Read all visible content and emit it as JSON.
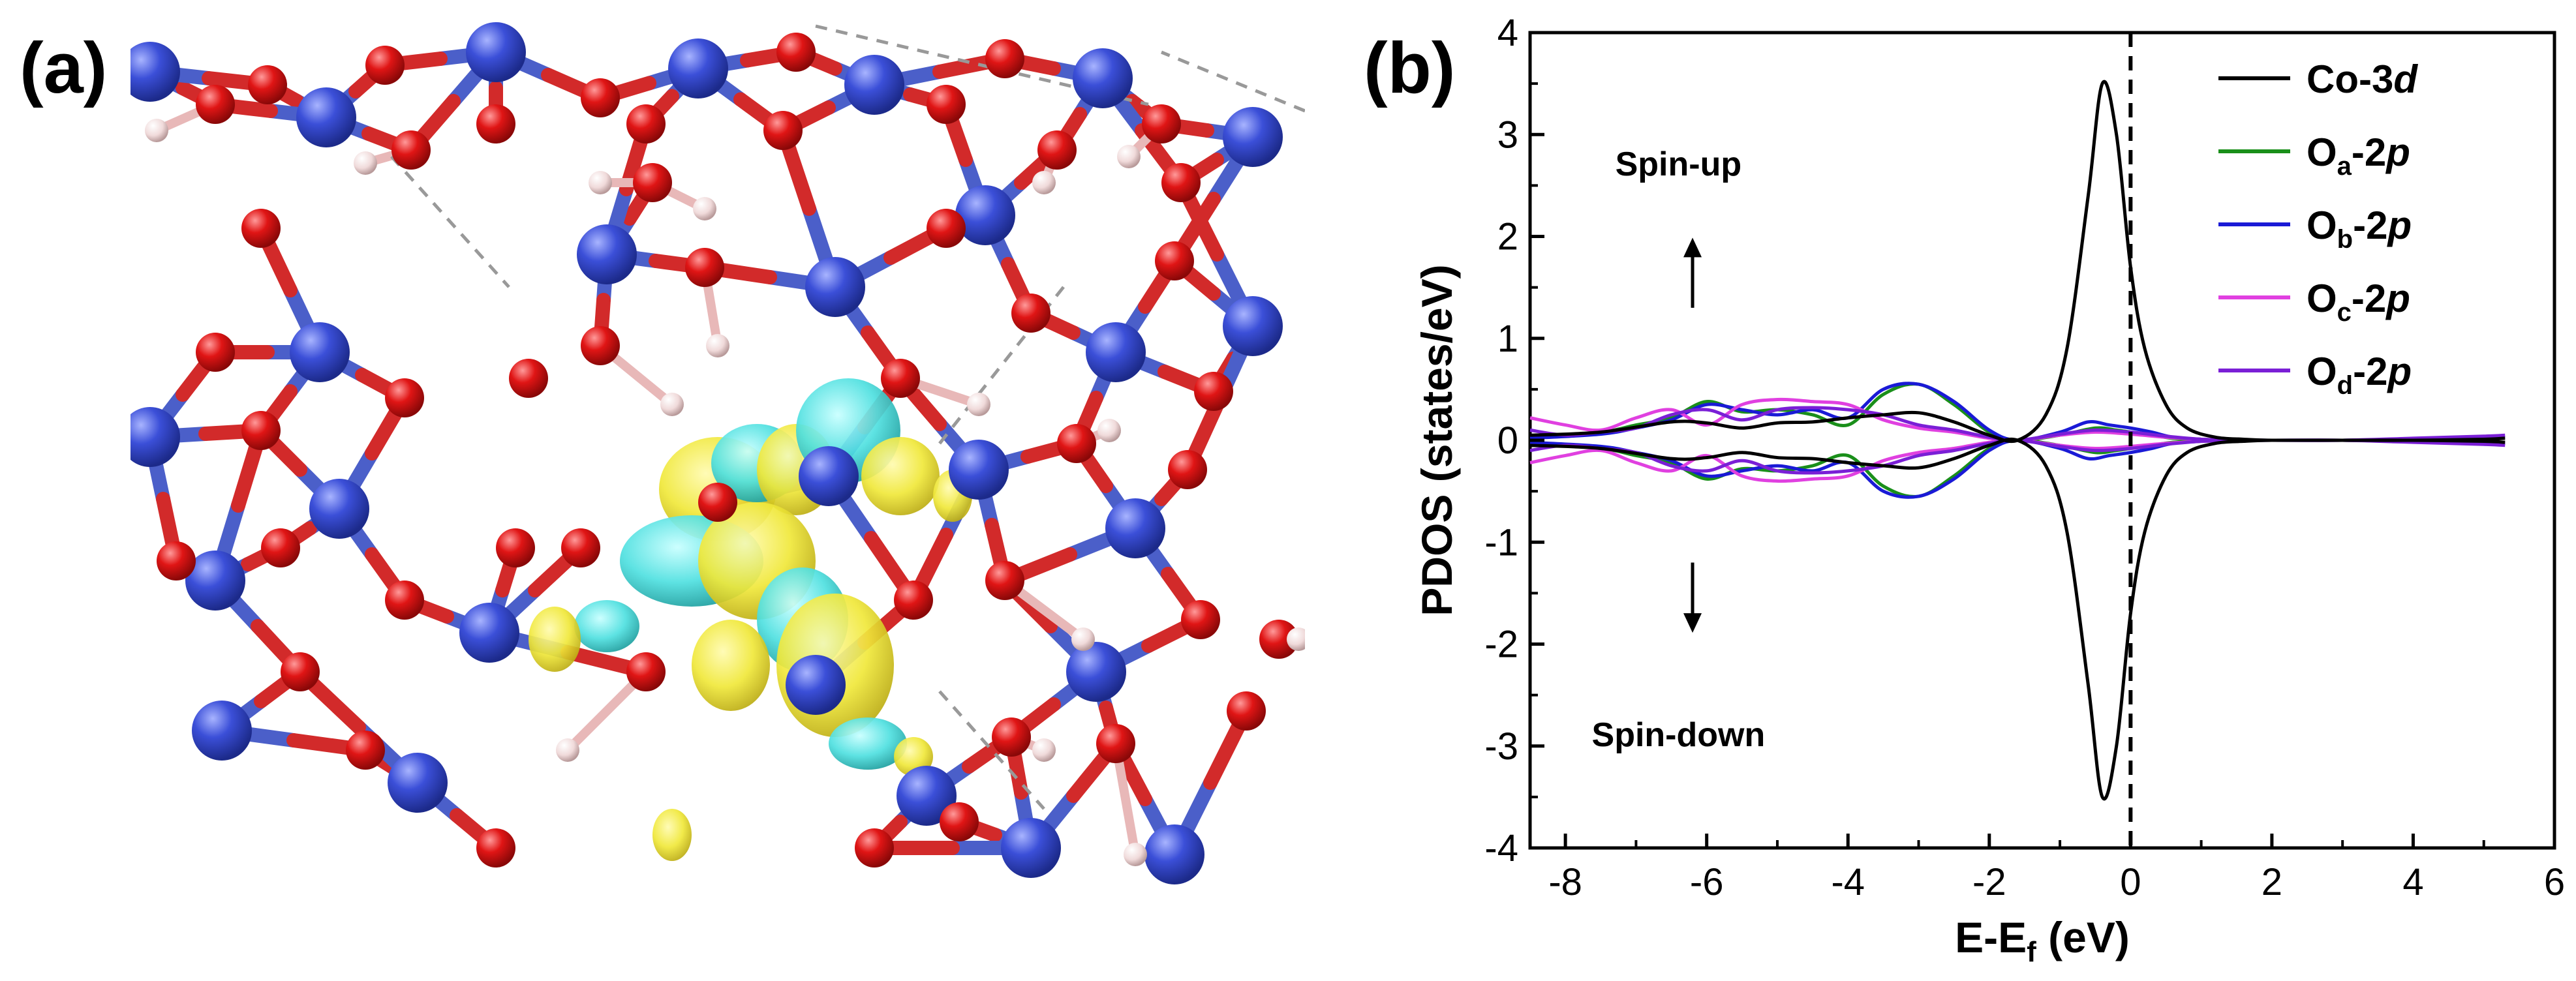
{
  "panels": {
    "a_label": "(a)",
    "b_label": "(b)"
  },
  "colors": {
    "bond": "#4b5fc9",
    "co_atom": "#3b4fd8",
    "o_atom": "#e01515",
    "h_atom": "#f0dada",
    "iso_yellow": "#f0e83a",
    "iso_cyan": "#4fe0e0"
  },
  "chart_data": {
    "type": "line",
    "xlabel_main": "E-E",
    "xlabel_sub": "f",
    "xlabel_unit": " (eV)",
    "ylabel": "PDOS (states/eV)",
    "xlim": [
      -8.5,
      6
    ],
    "ylim": [
      -4,
      4
    ],
    "xticks": [
      "-8",
      "-6",
      "-4",
      "-2",
      "0",
      "2",
      "4",
      "6"
    ],
    "yticks": [
      "-4",
      "-3",
      "-2",
      "-1",
      "0",
      "1",
      "2",
      "3",
      "4"
    ],
    "fermi_level": 0,
    "annotations": {
      "spin_up": "Spin-up",
      "spin_down": "Spin-down"
    },
    "legend_position": "top-right",
    "series": [
      {
        "name": "Co-3d",
        "label_main": "Co-3",
        "label_sub": "",
        "label_italic": "d",
        "color": "#000000",
        "x": [
          -8.5,
          -7.5,
          -6.5,
          -6.0,
          -5.5,
          -5.0,
          -4.5,
          -4.0,
          -3.5,
          -3.0,
          -2.5,
          -2.0,
          -1.6,
          -1.2,
          -0.9,
          -0.6,
          -0.4,
          -0.2,
          0.0,
          0.2,
          0.5,
          0.8,
          1.2,
          1.6,
          2.0,
          3.0,
          4.0,
          5.0,
          5.3
        ],
        "y": [
          0.05,
          0.08,
          0.18,
          0.17,
          0.12,
          0.17,
          0.18,
          0.22,
          0.25,
          0.27,
          0.18,
          0.05,
          0.0,
          0.25,
          0.9,
          2.4,
          3.5,
          3.0,
          1.7,
          0.9,
          0.35,
          0.12,
          0.03,
          0.01,
          0.0,
          0.0,
          0.0,
          0.01,
          0.02
        ]
      },
      {
        "name": "Oa-2p",
        "label_main": "O",
        "label_sub": "a",
        "label_italic": "p",
        "color": "#1a8f1a",
        "x": [
          -8.5,
          -7.5,
          -7.0,
          -6.5,
          -6.0,
          -5.5,
          -5.0,
          -4.5,
          -4.0,
          -3.5,
          -3.0,
          -2.5,
          -2.0,
          -1.6,
          -1.0,
          -0.5,
          -0.2,
          0.0,
          0.3,
          0.6,
          1.0,
          1.5,
          2.0,
          3.0,
          4.0,
          5.0,
          5.3
        ],
        "y": [
          0.03,
          0.08,
          0.15,
          0.22,
          0.38,
          0.28,
          0.3,
          0.25,
          0.15,
          0.45,
          0.55,
          0.35,
          0.08,
          0.0,
          0.05,
          0.12,
          0.1,
          0.08,
          0.05,
          0.02,
          0.01,
          0.0,
          0.0,
          0.0,
          0.01,
          0.02,
          0.02
        ]
      },
      {
        "name": "Ob-2p",
        "label_main": "O",
        "label_sub": "b",
        "label_italic": "p",
        "color": "#1a1ad6",
        "x": [
          -8.5,
          -7.5,
          -7.0,
          -6.5,
          -6.0,
          -5.5,
          -5.0,
          -4.5,
          -4.0,
          -3.5,
          -3.0,
          -2.5,
          -2.0,
          -1.6,
          -1.0,
          -0.6,
          -0.3,
          0.0,
          0.3,
          0.6,
          1.0,
          1.5,
          2.0,
          3.0,
          4.0,
          5.0,
          5.3
        ],
        "y": [
          0.02,
          0.06,
          0.12,
          0.2,
          0.35,
          0.3,
          0.25,
          0.3,
          0.22,
          0.5,
          0.55,
          0.38,
          0.1,
          0.0,
          0.08,
          0.18,
          0.15,
          0.12,
          0.08,
          0.03,
          0.01,
          0.0,
          0.0,
          0.0,
          0.01,
          0.03,
          0.03
        ]
      },
      {
        "name": "Oc-2p",
        "label_main": "O",
        "label_sub": "c",
        "label_italic": "p",
        "color": "#e040e0",
        "x": [
          -8.5,
          -8.0,
          -7.5,
          -7.0,
          -6.5,
          -6.0,
          -5.5,
          -5.0,
          -4.5,
          -4.0,
          -3.5,
          -3.0,
          -2.5,
          -2.0,
          -1.6,
          -1.0,
          -0.5,
          0.0,
          0.5,
          1.0,
          1.5,
          2.0,
          3.0,
          4.0,
          5.0,
          5.3
        ],
        "y": [
          0.22,
          0.15,
          0.1,
          0.22,
          0.3,
          0.15,
          0.35,
          0.4,
          0.38,
          0.35,
          0.2,
          0.12,
          0.08,
          0.02,
          0.0,
          0.05,
          0.08,
          0.06,
          0.03,
          0.01,
          0.0,
          0.0,
          0.0,
          0.01,
          0.02,
          0.02
        ]
      },
      {
        "name": "Od-2p",
        "label_main": "O",
        "label_sub": "d",
        "label_italic": "p",
        "color": "#7a1fd6",
        "x": [
          -8.5,
          -8.0,
          -7.5,
          -7.0,
          -6.5,
          -6.0,
          -5.5,
          -5.0,
          -4.5,
          -4.0,
          -3.5,
          -3.0,
          -2.5,
          -2.0,
          -1.6,
          -1.0,
          -0.5,
          0.0,
          0.5,
          1.0,
          1.5,
          2.0,
          3.0,
          4.0,
          5.0,
          5.3
        ],
        "y": [
          0.1,
          0.05,
          0.08,
          0.12,
          0.25,
          0.3,
          0.2,
          0.3,
          0.32,
          0.3,
          0.25,
          0.15,
          0.1,
          0.03,
          0.0,
          0.06,
          0.1,
          0.08,
          0.04,
          0.01,
          0.0,
          0.0,
          0.0,
          0.02,
          0.04,
          0.05
        ]
      }
    ]
  }
}
